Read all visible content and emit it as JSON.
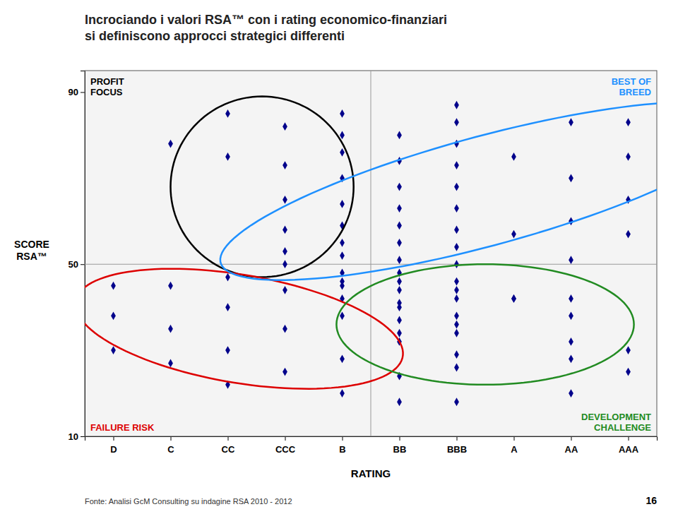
{
  "chart_data": {
    "type": "scatter",
    "title": "Incrociando i valori RSA™ con i rating economico-finanziari\nsi definiscono approcci strategici differenti",
    "xlabel": "RATING",
    "ylabel": "SCORE\nRSA™",
    "footnote": "Fonte: Analisi GcM Consulting su indagine RSA 2010 - 2012",
    "page_number": "16",
    "color": "#00008B",
    "marker": "diamond",
    "xlim": [
      0.5,
      10.5
    ],
    "xticks": [
      {
        "value": 1,
        "label": "D"
      },
      {
        "value": 2,
        "label": "C"
      },
      {
        "value": 3,
        "label": "CC"
      },
      {
        "value": 4,
        "label": "CCC"
      },
      {
        "value": 5,
        "label": "B"
      },
      {
        "value": 6,
        "label": "BB"
      },
      {
        "value": 7,
        "label": "BBB"
      },
      {
        "value": 8,
        "label": "A"
      },
      {
        "value": 9,
        "label": "AA"
      },
      {
        "value": 10,
        "label": "AAA"
      }
    ],
    "ylim": [
      10,
      95
    ],
    "yticks": [
      10,
      50,
      90
    ],
    "grid": false,
    "dividers": {
      "x": 5.5,
      "y": 50
    },
    "x": [
      2,
      3,
      3,
      4,
      4,
      4,
      4,
      4,
      4,
      5,
      5,
      5,
      5,
      5,
      5,
      5,
      5,
      5,
      5,
      5,
      6,
      6,
      6,
      6,
      6,
      6,
      6,
      6,
      6,
      6,
      6,
      6,
      7,
      7,
      7,
      7,
      7,
      7,
      7,
      7,
      7,
      7,
      7,
      7,
      7,
      7,
      8,
      8,
      8,
      9,
      9,
      9,
      9,
      9,
      9,
      10,
      10,
      10,
      10,
      10,
      1,
      1,
      1,
      2,
      2,
      2,
      3,
      3,
      3,
      3,
      4,
      4,
      4,
      5,
      5,
      5,
      5,
      6,
      6,
      6,
      6,
      6,
      7,
      7,
      7,
      7,
      8,
      9,
      9,
      9,
      10
    ],
    "values": [
      78,
      85,
      75,
      82,
      73,
      65,
      58,
      53,
      50,
      85,
      80,
      76,
      70,
      64,
      59,
      55,
      52,
      48,
      45,
      42,
      80,
      74,
      68,
      63,
      59,
      55,
      51,
      48,
      44,
      41,
      37,
      34,
      87,
      83,
      78,
      73,
      68,
      63,
      58,
      54,
      50,
      46,
      42,
      38,
      34,
      29,
      75,
      57,
      42,
      83,
      70,
      60,
      51,
      42,
      32,
      83,
      75,
      65,
      57,
      30,
      45,
      38,
      30,
      45,
      35,
      27,
      47,
      40,
      30,
      22,
      44,
      35,
      25,
      46,
      38,
      28,
      20,
      46,
      40,
      32,
      24,
      18,
      44,
      36,
      26,
      18,
      42,
      38,
      28,
      20,
      25
    ],
    "regions": [
      {
        "label": "PROFIT\nFOCUS",
        "color": "#000000",
        "cx": 3.6,
        "cy": 68,
        "width": 3.2,
        "height": 42,
        "angle": 0
      },
      {
        "label": "FAILURE RISK",
        "color": "#DD0000",
        "cx": 3.2,
        "cy": 35,
        "width": 5.2,
        "height": 28,
        "angle": 5
      },
      {
        "label": "BEST OF\nBREED",
        "color": "#1E90FF",
        "cx": 7.5,
        "cy": 67,
        "width": 5.8,
        "height": 42,
        "angle": -10
      },
      {
        "label": "DEVELOPMENT\nCHALLENGE",
        "color": "#228B22",
        "cx": 7.5,
        "cy": 36,
        "width": 5.2,
        "height": 28,
        "angle": 0
      }
    ]
  }
}
